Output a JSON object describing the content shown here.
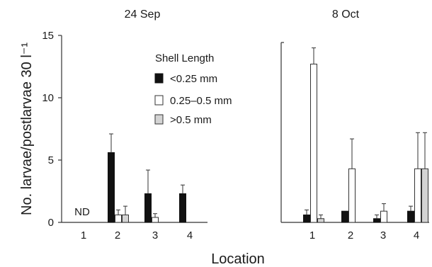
{
  "chart_data": [
    {
      "type": "bar",
      "title": "24 Sep",
      "xlabel": "Location",
      "ylabel": "No. larvae/postlarvae 30 l⁻¹",
      "ylim": [
        0,
        15
      ],
      "yticks": [
        "0",
        "5",
        "10",
        "15"
      ],
      "categories": [
        "1",
        "2",
        "3",
        "4"
      ],
      "series": [
        {
          "name": "<0.25 mm",
          "values": [
            null,
            5.6,
            2.3,
            2.3
          ],
          "errors": [
            null,
            1.5,
            1.9,
            0.7
          ]
        },
        {
          "name": "0.25–0.5 mm",
          "values": [
            null,
            0.6,
            0.4,
            0
          ],
          "errors": [
            null,
            0.4,
            0.3,
            0
          ]
        },
        {
          "name": ">0.5 mm",
          "values": [
            null,
            0.6,
            0,
            0
          ],
          "errors": [
            null,
            0.7,
            0,
            0
          ]
        }
      ],
      "annotations": [
        "ND"
      ]
    },
    {
      "type": "bar",
      "title": "8 Oct",
      "xlabel": "Location",
      "ylabel": "",
      "ylim": [
        0,
        15
      ],
      "categories": [
        "1",
        "2",
        "3",
        "4"
      ],
      "series": [
        {
          "name": "<0.25 mm",
          "values": [
            0.6,
            0.9,
            0.3,
            0.9
          ],
          "errors": [
            0.4,
            0,
            0.3,
            0.4
          ]
        },
        {
          "name": "0.25–0.5 mm",
          "values": [
            12.7,
            4.3,
            0.9,
            4.3
          ],
          "errors": [
            1.3,
            2.4,
            0.6,
            2.9
          ]
        },
        {
          "name": ">0.5 mm",
          "values": [
            0.3,
            0,
            0,
            4.3
          ],
          "errors": [
            0.3,
            0,
            0,
            2.9
          ]
        }
      ]
    }
  ],
  "legend": {
    "title": "Shell Length",
    "items": [
      "<0.25 mm",
      "0.25–0.5 mm",
      ">0.5 mm"
    ],
    "placement": "top-center"
  },
  "colors": {
    "small": "#111111",
    "medium": "#ffffff",
    "large": "#d4d4d4",
    "outline": "#333333"
  }
}
